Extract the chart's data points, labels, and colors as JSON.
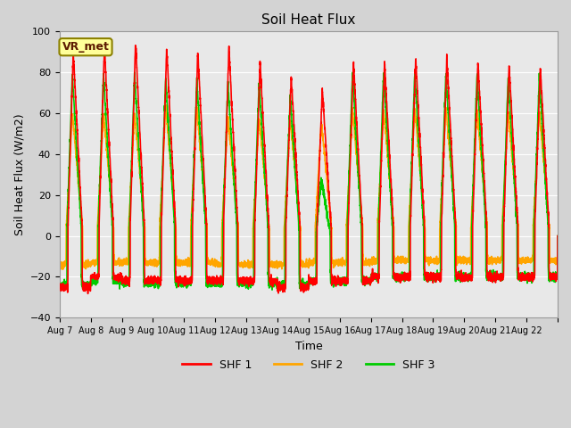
{
  "title": "Soil Heat Flux",
  "xlabel": "Time",
  "ylabel": "Soil Heat Flux (W/m2)",
  "ylim": [
    -40,
    100
  ],
  "background_color": "#d3d3d3",
  "plot_bg_color": "#e8e8e8",
  "annotation_label": "VR_met",
  "annotation_bg": "#ffff99",
  "annotation_border": "#8B8000",
  "series_colors": [
    "#ff0000",
    "#ffa500",
    "#00cc00"
  ],
  "series_labels": [
    "SHF 1",
    "SHF 2",
    "SHF 3"
  ],
  "num_days": 16,
  "points_per_day": 288,
  "start_day": 7,
  "shf1_peaks": [
    90,
    93,
    95,
    92,
    90,
    93,
    85,
    78,
    72,
    85,
    85,
    87,
    87,
    85,
    84,
    83
  ],
  "shf2_peaks": [
    60,
    60,
    60,
    63,
    63,
    58,
    58,
    57,
    56,
    62,
    62,
    63,
    63,
    62,
    61,
    61
  ],
  "shf3_peaks": [
    79,
    79,
    79,
    77,
    77,
    75,
    75,
    68,
    28,
    80,
    80,
    80,
    80,
    79,
    78,
    78
  ],
  "shf1_troughs": [
    -25,
    -20,
    -22,
    -22,
    -22,
    -22,
    -22,
    -25,
    -22,
    -22,
    -20,
    -20,
    -20,
    -20,
    -20,
    -20
  ],
  "shf2_troughs": [
    -14,
    -13,
    -13,
    -13,
    -13,
    -14,
    -14,
    -14,
    -13,
    -13,
    -12,
    -12,
    -12,
    -12,
    -12,
    -12
  ],
  "shf3_troughs": [
    -24,
    -22,
    -23,
    -23,
    -23,
    -23,
    -23,
    -24,
    -22,
    -22,
    -20,
    -20,
    -20,
    -20,
    -20,
    -20
  ],
  "tick_labels": [
    "Aug 7",
    "Aug 8",
    "Aug 9",
    "Aug 10",
    "Aug 11",
    "Aug 12",
    "Aug 13",
    "Aug 14",
    "Aug 15",
    "Aug 16",
    "Aug 17",
    "Aug 18",
    "Aug 19",
    "Aug 20",
    "Aug 21",
    "Aug 22"
  ],
  "yticks": [
    -40,
    -20,
    0,
    20,
    40,
    60,
    80,
    100
  ],
  "grid_color": "#ffffff",
  "line_width": 1.2
}
